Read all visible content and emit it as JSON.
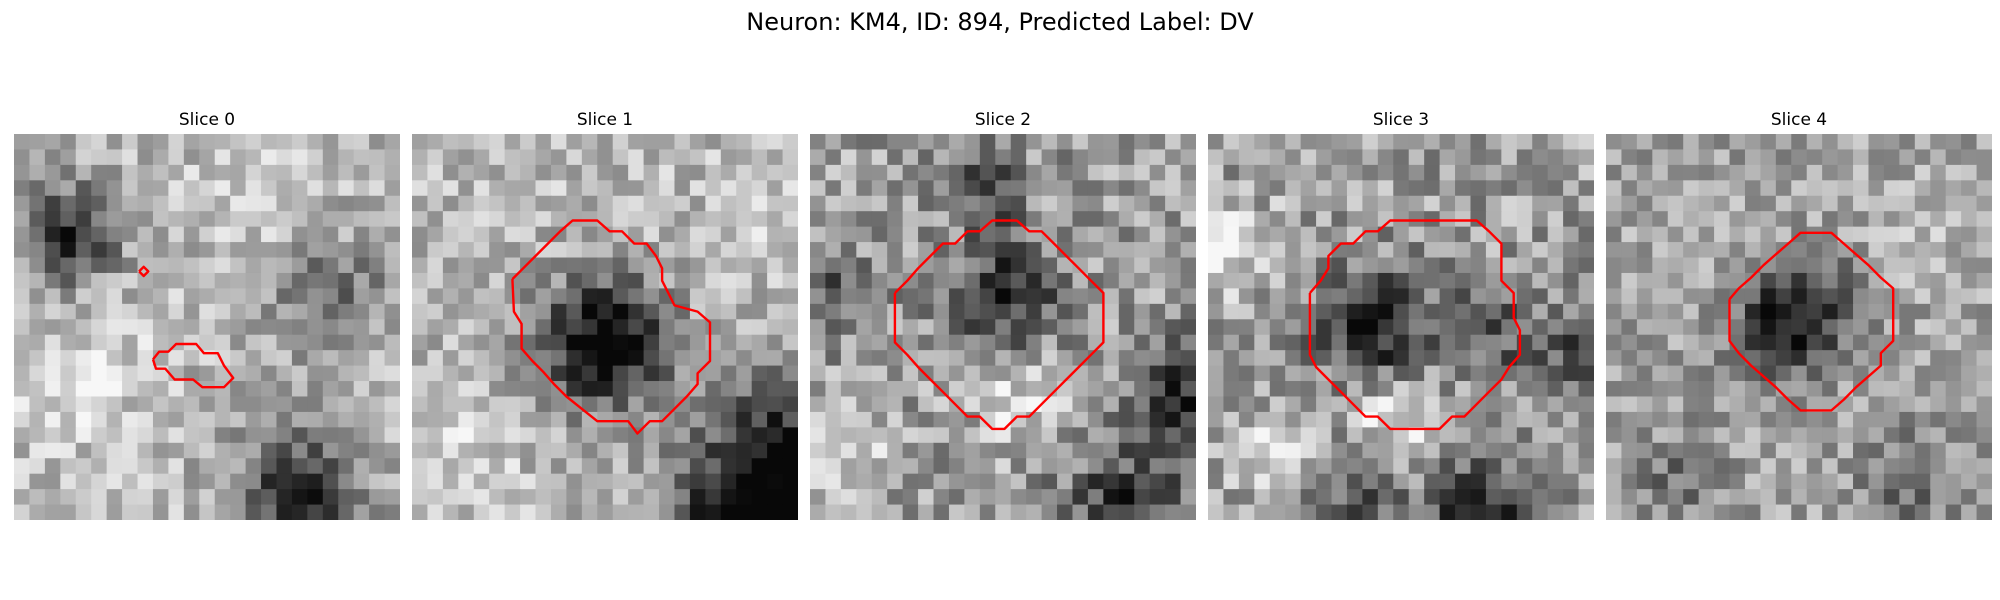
{
  "figure": {
    "title": "Neuron: KM4, ID: 894, Predicted Label: DV"
  },
  "panels": [
    {
      "title": "Slice 0"
    },
    {
      "title": "Slice 1"
    },
    {
      "title": "Slice 2"
    },
    {
      "title": "Slice 3"
    },
    {
      "title": "Slice 4"
    }
  ],
  "colors": {
    "contour": "#ff0000",
    "background": "#ffffff"
  }
}
